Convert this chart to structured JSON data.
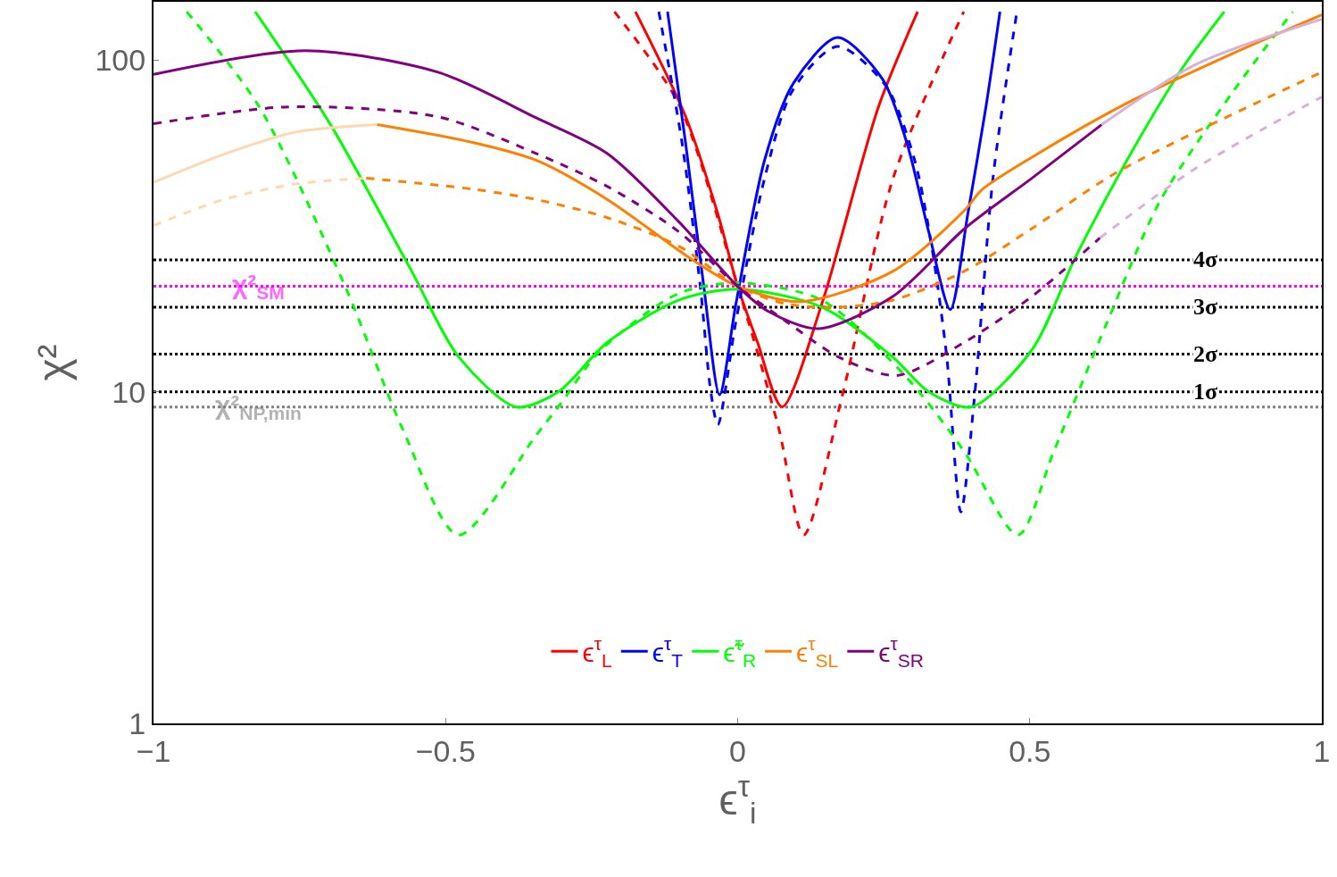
{
  "chart_data": {
    "type": "line",
    "xlabel": "ϵ$^{τ}$$_{i}$",
    "ylabel": "χ²",
    "log": "y",
    "grid": false,
    "legend": "bottom",
    "marker": "none",
    "xlim": [
      -1,
      1
    ],
    "xticks": [
      {
        "value": -1,
        "label": "−1"
      },
      {
        "value": -0.5,
        "label": "−0.5"
      },
      0,
      0.5,
      1
    ],
    "ylim": [
      1,
      150
    ],
    "yticks": [
      1,
      10,
      100
    ],
    "series": [
      {
        "name": "ϵ$^{τ}$$_{L}$",
        "color": "#ff0000",
        "line_style": "solid",
        "x": [
          -0.175,
          -0.089,
          -0.034,
          0,
          0.034,
          0.076,
          0.144,
          0.241,
          0.308
        ],
        "values": [
          140,
          67.5,
          34.4,
          20.8,
          14.1,
          9.0,
          18.4,
          72.3,
          140
        ]
      },
      {
        "color": "#ff0000",
        "line_style": "dashed",
        "x": [
          -0.211,
          -0.101,
          0,
          0.07,
          0.113,
          0.18,
          0.266,
          0.387
        ],
        "values": [
          140,
          73.7,
          20.8,
          7.8,
          3.7,
          9.9,
          44,
          140
        ]
      },
      {
        "name": "ϵ$^{τ}$$_{T}$",
        "color": "#0000ff",
        "line_style": "solid",
        "x": [
          -0.12,
          -0.089,
          -0.058,
          -0.031,
          -0.003,
          0.046,
          0.095,
          0.171,
          0.248,
          0.29,
          0.327,
          0.364,
          0.394,
          0.425,
          0.449
        ],
        "values": [
          140,
          56,
          20.8,
          9.8,
          18.4,
          49.9,
          85,
          117,
          87.7,
          56,
          30.4,
          17.7,
          34.4,
          72.3,
          140
        ]
      },
      {
        "color": "#0000ff",
        "line_style": "dashed",
        "x": [
          -0.135,
          -0.095,
          -0.064,
          -0.046,
          -0.034,
          -0.003,
          0.046,
          0.095,
          0.171,
          0.254,
          0.303,
          0.333,
          0.358,
          0.382,
          0.406,
          0.437,
          0.478
        ],
        "values": [
          140,
          56,
          20.8,
          10,
          7.95,
          16.3,
          44,
          81.6,
          110,
          83.5,
          49.9,
          26.9,
          12.7,
          4.34,
          9.9,
          44,
          140
        ]
      },
      {
        "name": "ϵ̃$^{τ}$$_{R}$",
        "color": "#00ff00",
        "line_style": "solid",
        "x": [
          -0.826,
          -0.697,
          -0.562,
          -0.477,
          -0.379,
          -0.307,
          -0.223,
          -0.101,
          0,
          0.144,
          0.266,
          0.327,
          0.4,
          0.504,
          0.578,
          0.663,
          0.761,
          0.833
        ],
        "values": [
          140,
          63.9,
          23.8,
          12.7,
          9.0,
          10,
          14.1,
          18.9,
          20.4,
          18,
          12.7,
          10,
          9.0,
          13.4,
          25.4,
          48.7,
          94.5,
          140
        ]
      },
      {
        "color": "#00ff00",
        "line_style": "dashed",
        "x": [
          -0.943,
          -0.819,
          -0.672,
          -0.574,
          -0.478,
          -0.345,
          -0.307,
          -0.235,
          -0.101,
          0,
          0.144,
          0.29,
          0.388,
          0.48,
          0.541,
          0.633,
          0.724,
          0.846,
          0.95
        ],
        "values": [
          140,
          72.3,
          20.8,
          7.76,
          3.7,
          7.4,
          9.0,
          13.3,
          19.8,
          21.3,
          18.9,
          11,
          6.6,
          3.7,
          6.6,
          16.3,
          37.9,
          79.5,
          140
        ]
      },
      {
        "color": "#ffd8b0",
        "line_style": "solid",
        "x": [
          -1,
          -0.88,
          -0.758,
          -0.617
        ],
        "values": [
          42.8,
          52,
          60.6,
          63.9
        ]
      },
      {
        "name": "ϵ$^{τ}$$_{SL}$",
        "color": "#ff7f00",
        "line_style": "solid",
        "x": [
          -0.617,
          -0.452,
          -0.345,
          -0.223,
          -0.076,
          0,
          0.107,
          0.266,
          0.388,
          0.419,
          0.504,
          0.663,
          0.846,
          1
        ],
        "values": [
          63.9,
          56.4,
          49.9,
          38,
          24.9,
          20.8,
          18.7,
          23.1,
          35.2,
          40.8,
          51,
          73.7,
          104.5,
          137
        ]
      },
      {
        "color": "#ffd8b0",
        "line_style": "dashed",
        "x": [
          -1,
          -0.88,
          -0.758,
          -0.636
        ],
        "values": [
          31.7,
          38,
          42.3,
          44.1
        ]
      },
      {
        "color": "#ff7f00",
        "line_style": "dashed",
        "x": [
          -0.636,
          -0.452,
          -0.345,
          -0.223,
          -0.101,
          0,
          0.083,
          0.174,
          0.266,
          0.388,
          0.504,
          0.651,
          1
        ],
        "values": [
          44.1,
          40.8,
          38,
          33.5,
          27.5,
          20.8,
          18.4,
          18,
          18.9,
          23.1,
          31.1,
          46.1,
          92
        ]
      },
      {
        "name": "ϵ$^{τ}$$_{SR}$",
        "color": "#800080",
        "line_style": "solid",
        "x": [
          -1,
          -0.74,
          -0.513,
          -0.345,
          -0.223,
          -0.101,
          0,
          0.052,
          0.138,
          0.266,
          0.388,
          0.504,
          0.623
        ],
        "values": [
          90.6,
          106.8,
          92,
          67,
          52.3,
          32.6,
          20.8,
          17.5,
          15.5,
          19.4,
          31,
          44.1,
          63.9
        ]
      },
      {
        "color": "#d8b0d8",
        "line_style": "solid",
        "x": [
          0.623,
          0.785,
          1
        ],
        "values": [
          63.9,
          97.2,
          133
        ]
      },
      {
        "color": "#800080",
        "line_style": "dashed",
        "x": [
          -1,
          -0.77,
          -0.513,
          -0.345,
          -0.223,
          -0.101,
          0,
          0.083,
          0.174,
          0.272,
          0.388,
          0.504,
          0.62
        ],
        "values": [
          64.3,
          72.3,
          67.5,
          52.3,
          41.6,
          30.4,
          20.8,
          16.3,
          12.7,
          11.2,
          14.1,
          19.4,
          29.1
        ]
      },
      {
        "color": "#d8b0d8",
        "line_style": "dashed",
        "x": [
          0.62,
          0.785,
          1
        ],
        "values": [
          29.1,
          47.3,
          77.5
        ]
      }
    ],
    "ref_lines": [
      {
        "axis": "y",
        "value": 25,
        "label": "4σ",
        "color": "#000000",
        "line_style": "dotted"
      },
      {
        "axis": "y",
        "value": 20.8,
        "color": "#ff00ff",
        "line_style": "dotted"
      },
      {
        "axis": "y",
        "value": 18,
        "label": "3σ",
        "color": "#000000",
        "line_style": "dotted"
      },
      {
        "axis": "y",
        "value": 13,
        "label": "2σ",
        "color": "#000000",
        "line_style": "dotted"
      },
      {
        "axis": "y",
        "value": 10,
        "label": "1σ",
        "color": "#000000",
        "line_style": "dotted"
      },
      {
        "axis": "y",
        "value": 9,
        "color": "#808080",
        "line_style": "dotted"
      }
    ],
    "annotations": [
      {
        "text": "χ²$_{SM}$",
        "x": -0.82,
        "y": 20.8
      },
      {
        "text": "χ²$_{NP,min}$",
        "x": -0.82,
        "y": 9
      }
    ]
  }
}
